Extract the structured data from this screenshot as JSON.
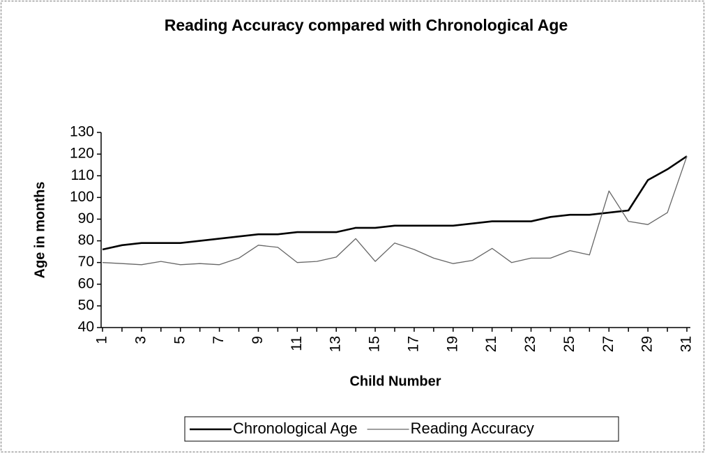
{
  "chart_data": {
    "type": "line",
    "title": "Reading Accuracy compared with Chronological Age",
    "y_label": "Age in months",
    "x_label": "Child Number",
    "categories": [
      "1",
      null,
      "3",
      null,
      "5",
      null,
      "7",
      null,
      "9",
      null,
      "11",
      null,
      "13",
      null,
      "15",
      null,
      "17",
      null,
      "19",
      null,
      "21",
      null,
      "23",
      null,
      "25",
      null,
      "27",
      null,
      "29",
      null,
      "31"
    ],
    "ylim": [
      40,
      130
    ],
    "yticks": [
      40,
      50,
      60,
      70,
      80,
      90,
      100,
      110,
      120,
      130
    ],
    "grid": false,
    "legend": "bottom",
    "series": [
      {
        "name": "Chronological Age",
        "color": "#000000",
        "values": [
          76,
          78,
          79,
          79,
          79,
          80,
          81,
          82,
          83,
          83,
          84,
          84,
          84,
          86,
          86,
          87,
          87,
          87,
          87,
          88,
          89,
          89,
          89,
          91,
          92,
          92,
          93,
          94,
          108,
          113,
          119
        ]
      },
      {
        "name": "Reading Accuracy",
        "color": "#666666",
        "values": [
          70,
          69.5,
          69,
          70.5,
          69,
          69.5,
          69,
          72,
          78,
          77,
          70,
          70.5,
          72.5,
          81,
          70.5,
          79,
          76,
          72,
          69.5,
          71,
          76.5,
          70,
          72,
          72,
          75.5,
          73.5,
          103,
          89,
          87.5,
          93,
          119
        ]
      }
    ]
  }
}
